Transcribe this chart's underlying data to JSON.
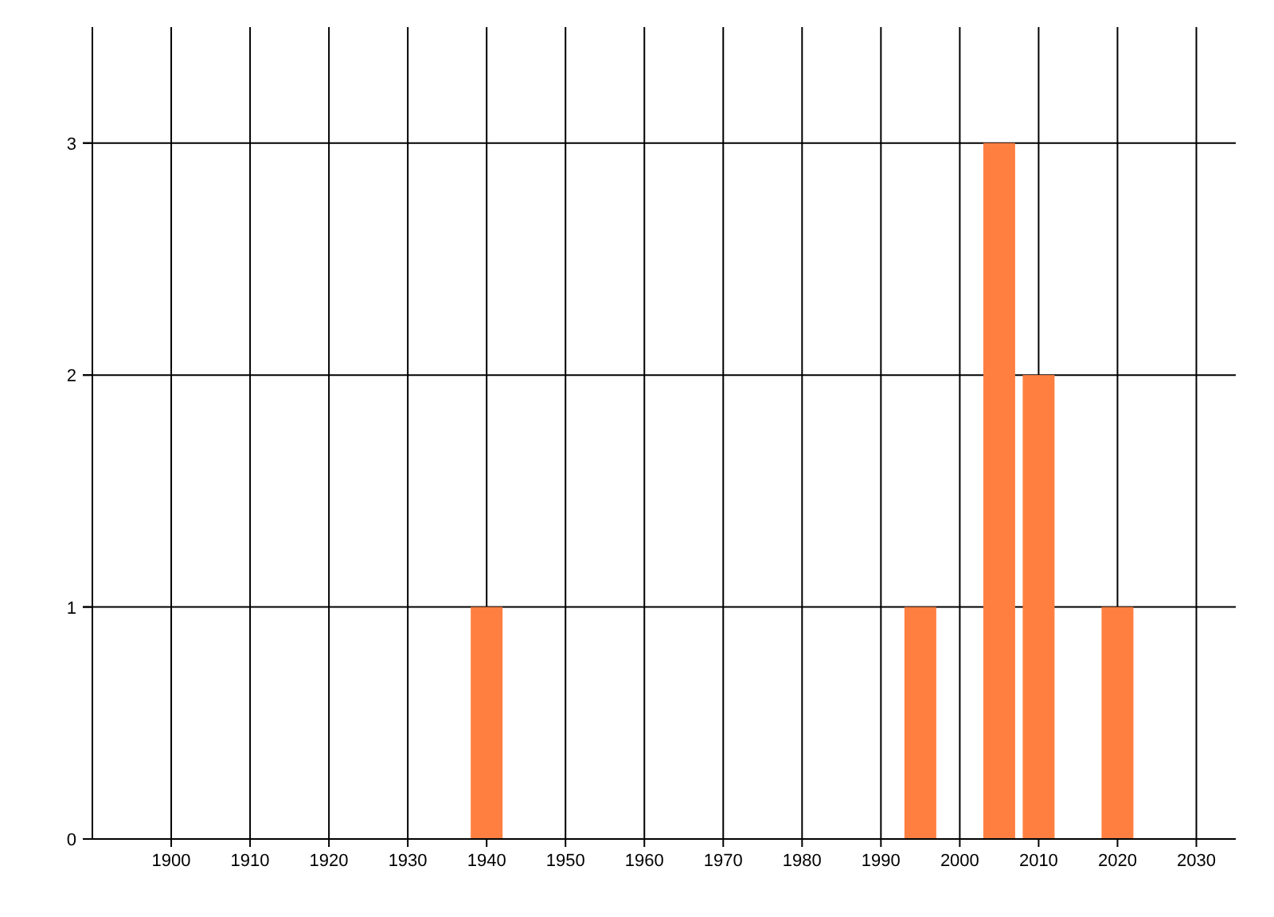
{
  "chart_data": {
    "type": "bar",
    "x": [
      1940,
      1995,
      2005,
      2010,
      2020
    ],
    "series": [
      {
        "color": "#ff7f40",
        "values": [
          1,
          1,
          3,
          2,
          1
        ]
      }
    ],
    "xlim": [
      1890,
      2035
    ],
    "xticks": [
      1900,
      1910,
      1920,
      1930,
      1940,
      1950,
      1960,
      1970,
      1980,
      1990,
      2000,
      2010,
      2020,
      2030
    ],
    "ylim": [
      0,
      3.5
    ],
    "yticks": [
      0,
      1,
      2,
      3
    ],
    "grid": true
  }
}
